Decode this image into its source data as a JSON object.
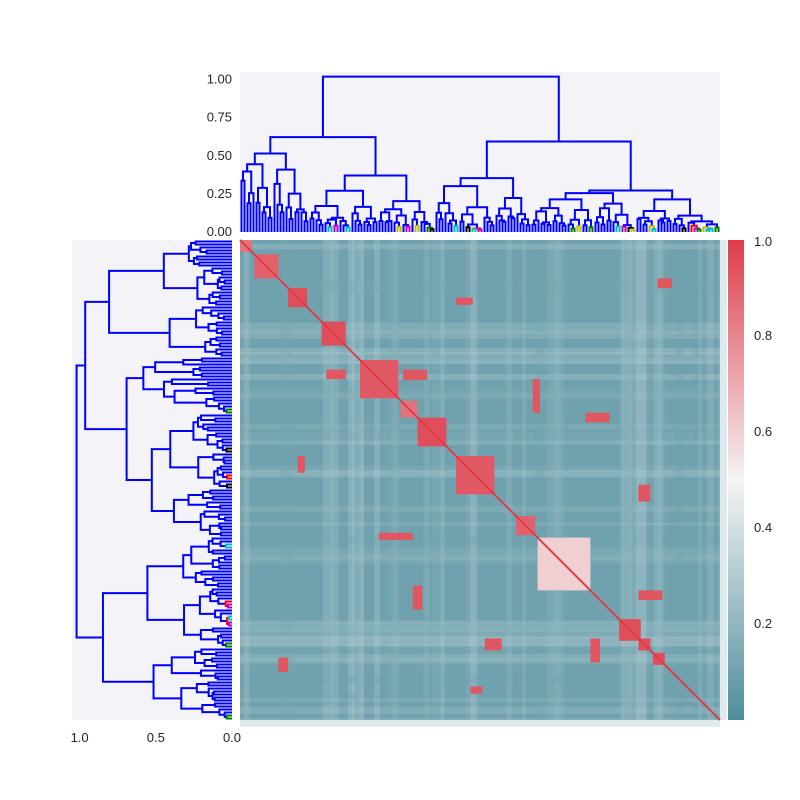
{
  "chart_data": [
    {
      "type": "dendrogram",
      "orientation": "top",
      "value_ticks": [
        "0.00",
        "0.25",
        "0.50",
        "0.75",
        "1.00"
      ],
      "range": [
        0,
        1.05
      ],
      "leaf_count": 160,
      "link_colors": {
        "main": "#0000ff",
        "clusters": [
          "#00bfbf",
          "#ff0000",
          "#bf00bf",
          "#008000",
          "#000000",
          "#bfbf00"
        ]
      }
    },
    {
      "type": "dendrogram",
      "orientation": "left",
      "value_ticks": [
        "1.0",
        "0.5",
        "0.0"
      ],
      "range": [
        0,
        1.05
      ],
      "leaf_count": 160
    },
    {
      "type": "heatmap",
      "rows": 160,
      "cols": 160,
      "value_range": [
        0,
        1
      ],
      "diagonal_value": 1.0,
      "background_value": 0.1,
      "blocks_on_diagonal": [
        {
          "start": 0.86,
          "end": 0.885,
          "value": 0.95
        },
        {
          "start": 0.83,
          "end": 0.855,
          "value": 0.95
        },
        {
          "start": 0.79,
          "end": 0.835,
          "value": 0.95
        },
        {
          "start": 0.62,
          "end": 0.73,
          "value": 0.6
        },
        {
          "start": 0.575,
          "end": 0.615,
          "value": 0.9
        },
        {
          "start": 0.45,
          "end": 0.53,
          "value": 0.92
        },
        {
          "start": 0.37,
          "end": 0.43,
          "value": 0.95
        },
        {
          "start": 0.335,
          "end": 0.37,
          "value": 0.85
        },
        {
          "start": 0.25,
          "end": 0.33,
          "value": 0.92
        },
        {
          "start": 0.17,
          "end": 0.22,
          "value": 0.95
        },
        {
          "start": 0.1,
          "end": 0.14,
          "value": 0.95
        },
        {
          "start": 0.03,
          "end": 0.08,
          "value": 0.9
        },
        {
          "start": 0.0,
          "end": 0.025,
          "value": 0.85
        }
      ],
      "colorbar": {
        "ticks": [
          "1.0",
          "0.8",
          "0.6",
          "0.4",
          "0.2"
        ],
        "tick_values": [
          1.0,
          0.8,
          0.6,
          0.4,
          0.2
        ],
        "colors": [
          "#4e8e9c",
          "#f4f4f4",
          "#dd3c49"
        ]
      }
    }
  ]
}
